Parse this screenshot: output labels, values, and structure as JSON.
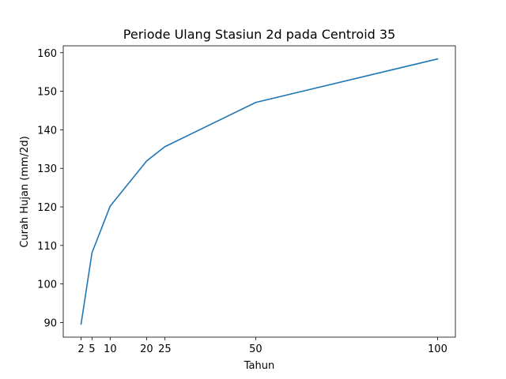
{
  "chart_data": {
    "type": "line",
    "title": "Periode Ulang Stasiun 2d pada Centroid 35",
    "xlabel": "Tahun",
    "ylabel": "Curah Hujan (mm/2d)",
    "x": [
      2,
      5,
      10,
      20,
      25,
      50,
      100
    ],
    "series": [
      {
        "values": [
          89.6,
          108.1,
          120.2,
          131.9,
          135.6,
          147.1,
          158.4
        ],
        "color": "#1f77b4"
      }
    ],
    "xticks": [
      "2",
      "5",
      "10",
      "20",
      "25",
      "50",
      "100"
    ],
    "yticks": [
      "90",
      "100",
      "110",
      "120",
      "130",
      "140",
      "150",
      "160"
    ],
    "xlim": [
      -2.9,
      104.9
    ],
    "ylim": [
      86.2,
      161.8
    ],
    "grid": false,
    "legend": "none"
  }
}
